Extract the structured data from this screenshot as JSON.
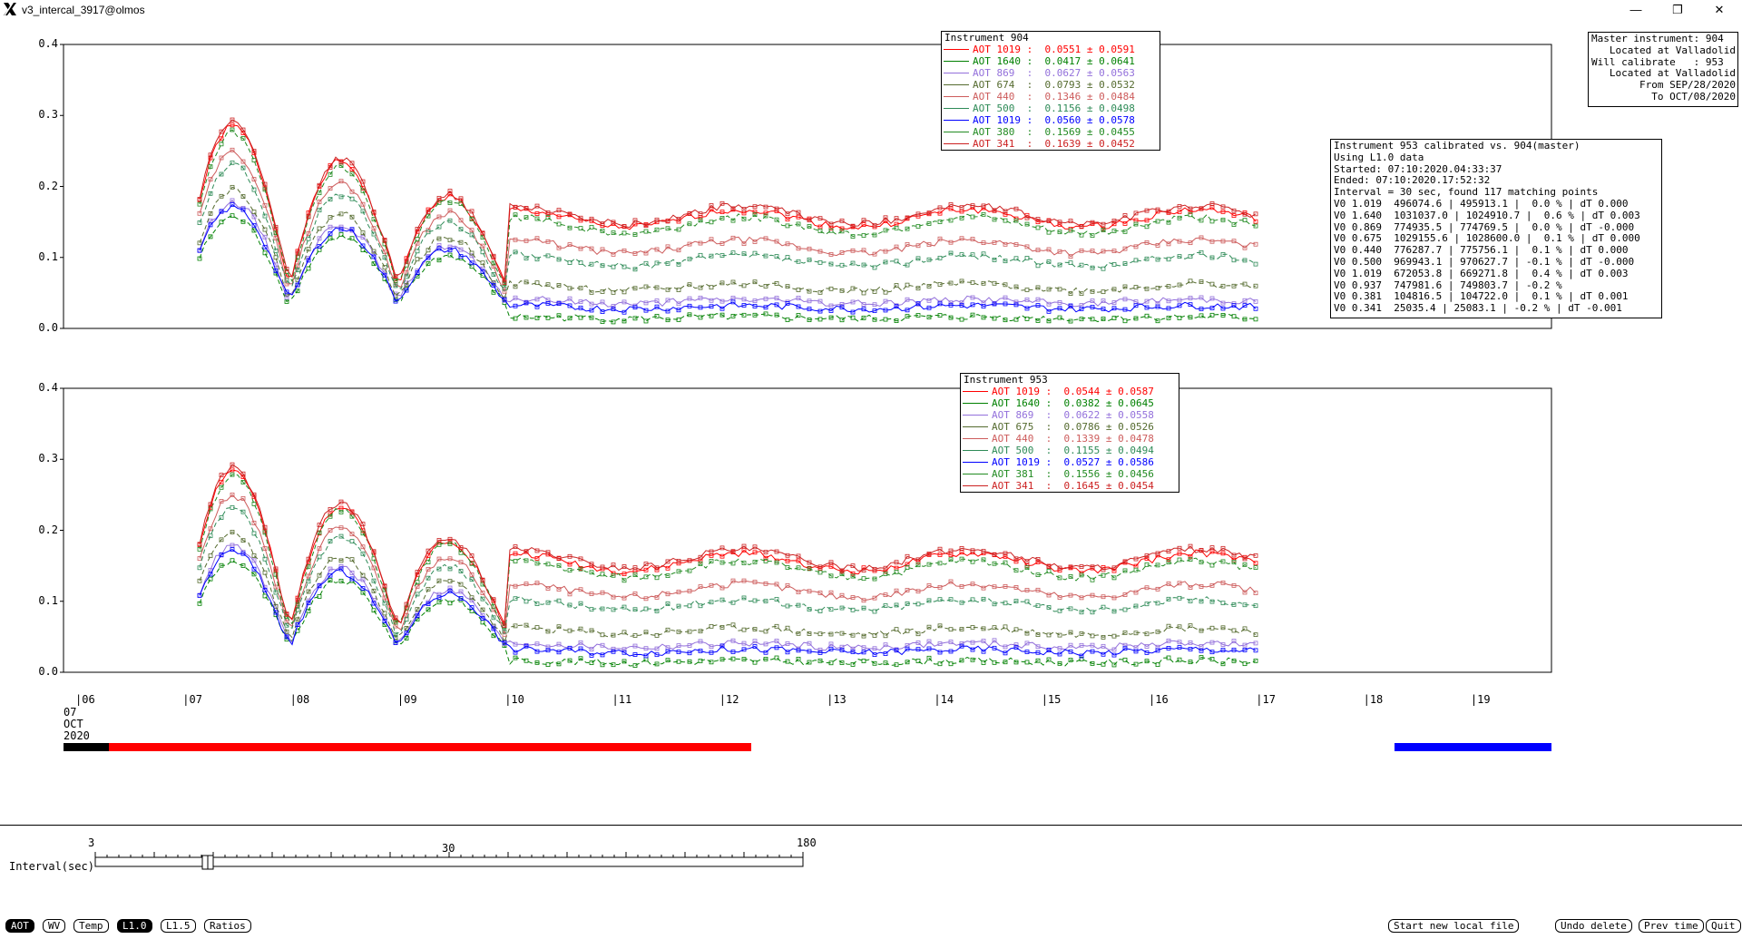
{
  "window": {
    "title": "v3_intercal_3917@olmos",
    "controls": [
      "—",
      "❐",
      "✕"
    ]
  },
  "chart_data": [
    {
      "type": "line",
      "title": "Instrument 904",
      "ylim": [
        0.0,
        0.4
      ],
      "yticks": [
        "0.0",
        "0.1",
        "0.2",
        "0.3",
        "0.4"
      ],
      "legend": [
        {
          "name": "AOT 1019",
          "stat": "0.0551 ± 0.0591",
          "color": "#ff0000"
        },
        {
          "name": "AOT 1640",
          "stat": "0.0417 ± 0.0641",
          "color": "#008000"
        },
        {
          "name": "AOT 869",
          "stat": "0.0627 ± 0.0563",
          "color": "#9370db"
        },
        {
          "name": "AOT 674",
          "stat": "0.0793 ± 0.0532",
          "color": "#556b2f"
        },
        {
          "name": "AOT 440",
          "stat": "0.1346 ± 0.0484",
          "color": "#cd5c5c"
        },
        {
          "name": "AOT 500",
          "stat": "0.1156 ± 0.0498",
          "color": "#2e8b57"
        },
        {
          "name": "AOT 1019",
          "stat": "0.0560 ± 0.0578",
          "color": "#0000ff"
        },
        {
          "name": "AOT 380",
          "stat": "0.1569 ± 0.0455",
          "color": "#228b22"
        },
        {
          "name": "AOT 341",
          "stat": "0.1639 ± 0.0452",
          "color": "#cc2222"
        }
      ],
      "series_level": [
        0.155,
        0.015,
        0.038,
        0.058,
        0.115,
        0.095,
        0.03,
        0.145,
        0.16
      ]
    },
    {
      "type": "line",
      "title": "Instrument 953",
      "ylim": [
        0.0,
        0.4
      ],
      "yticks": [
        "0.0",
        "0.1",
        "0.2",
        "0.3",
        "0.4"
      ],
      "legend": [
        {
          "name": "AOT 1019",
          "stat": "0.0544 ± 0.0587",
          "color": "#ff0000"
        },
        {
          "name": "AOT 1640",
          "stat": "0.0382 ± 0.0645",
          "color": "#008000"
        },
        {
          "name": "AOT 869",
          "stat": "0.0622 ± 0.0558",
          "color": "#9370db"
        },
        {
          "name": "AOT 675",
          "stat": "0.0786 ± 0.0526",
          "color": "#556b2f"
        },
        {
          "name": "AOT 440",
          "stat": "0.1339 ± 0.0478",
          "color": "#cd5c5c"
        },
        {
          "name": "AOT 500",
          "stat": "0.1155 ± 0.0494",
          "color": "#2e8b57"
        },
        {
          "name": "AOT 1019",
          "stat": "0.0527 ± 0.0586",
          "color": "#0000ff"
        },
        {
          "name": "AOT 381",
          "stat": "0.1556 ± 0.0456",
          "color": "#228b22"
        },
        {
          "name": "AOT 341",
          "stat": "0.1645 ± 0.0454",
          "color": "#cc2222"
        }
      ],
      "series_level": [
        0.155,
        0.015,
        0.038,
        0.058,
        0.115,
        0.095,
        0.03,
        0.145,
        0.16
      ]
    }
  ],
  "master_box": [
    "Master instrument: 904",
    "   Located at Valladolid",
    "Will calibrate   : 953",
    "   Located at Valladolid",
    "        From SEP/28/2020",
    "          To OCT/08/2020"
  ],
  "calib_box": [
    "Instrument 953 calibrated vs. 904(master)",
    "Using L1.0 data",
    "Started: 07:10:2020.04:33:37",
    "Ended: 07:10:2020.17:52:32",
    "Interval = 30 sec, found 117 matching points",
    "V0 1.019  496074.6 | 495913.1 |  0.0 % | dT 0.000",
    "V0 1.640  1031037.0 | 1024910.7 |  0.6 % | dT 0.003",
    "V0 0.869  774935.5 | 774769.5 |  0.0 % | dT -0.000",
    "V0 0.675  1029155.6 | 1028600.0 |  0.1 % | dT 0.000",
    "V0 0.440  776287.7 | 775756.1 |  0.1 % | dT 0.000",
    "V0 0.500  969943.1 | 970627.7 | -0.1 % | dT -0.000",
    "V0 1.019  672053.8 | 669271.8 |  0.4 % | dT 0.003",
    "V0 0.937  747981.6 | 749803.7 | -0.2 %",
    "V0 0.381  104816.5 | 104722.0 |  0.1 % | dT 0.001",
    "V0 0.341  25035.4 | 25083.1 | -0.2 % | dT -0.001"
  ],
  "time_axis": {
    "hours": [
      "06",
      "07",
      "08",
      "09",
      "10",
      "11",
      "12",
      "13",
      "14",
      "15",
      "16",
      "17",
      "18",
      "19"
    ],
    "date_day": "07",
    "date_month": "OCT",
    "date_year": "2020"
  },
  "interval_slider": {
    "label": "Interval(sec)",
    "min_label": "3",
    "mid_label": "30",
    "max_label": "180"
  },
  "buttons_left": [
    {
      "label": "AOT",
      "active": true
    },
    {
      "label": "WV",
      "active": false
    },
    {
      "label": "Temp",
      "active": false
    },
    {
      "label": "L1.0",
      "active": true
    },
    {
      "label": "L1.5",
      "active": false
    },
    {
      "label": "Ratios",
      "active": false
    }
  ],
  "buttons_right": [
    "Start new local file",
    "Undo delete",
    "Prev time",
    "Quit"
  ]
}
